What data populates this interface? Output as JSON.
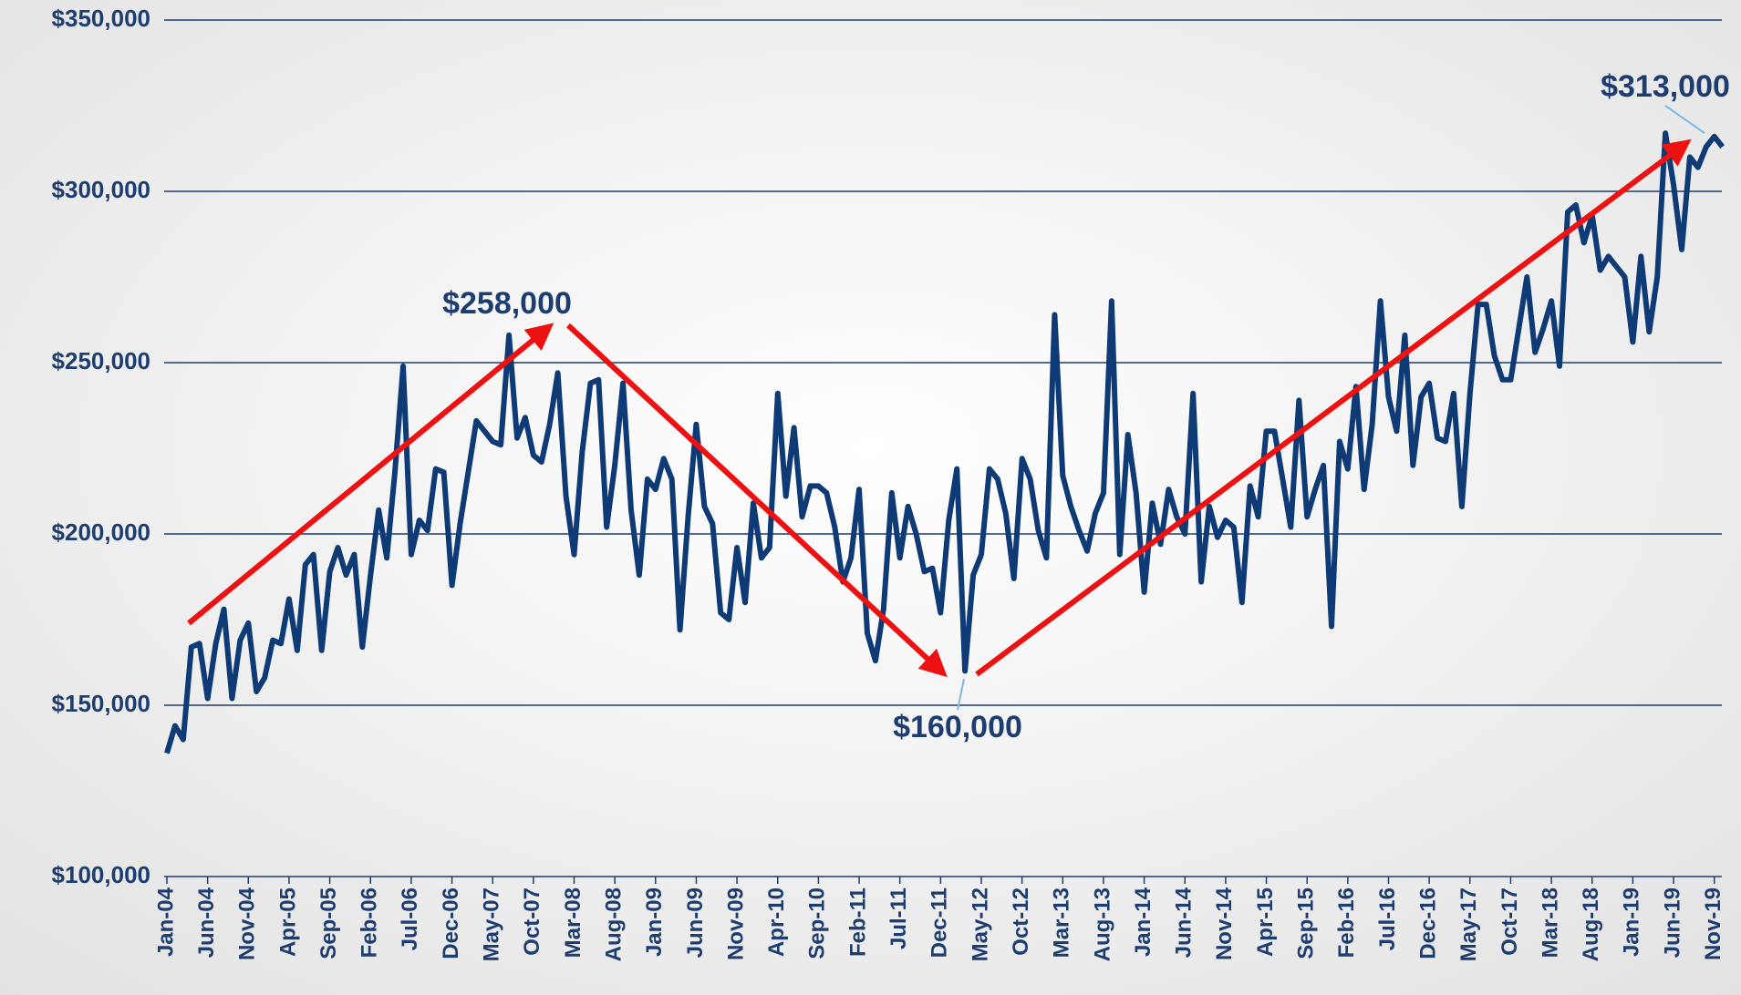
{
  "chart_data": {
    "type": "line",
    "categories": [
      "Jan-04",
      null,
      null,
      null,
      null,
      "Jun-04",
      null,
      null,
      null,
      null,
      "Nov-04",
      null,
      null,
      null,
      null,
      "Apr-05",
      null,
      null,
      null,
      null,
      "Sep-05",
      null,
      null,
      null,
      null,
      "Feb-06",
      null,
      null,
      null,
      null,
      "Jul-06",
      null,
      null,
      null,
      null,
      "Dec-06",
      null,
      null,
      null,
      null,
      "May-07",
      null,
      null,
      null,
      null,
      "Oct-07",
      null,
      null,
      null,
      null,
      "Mar-08",
      null,
      null,
      null,
      null,
      "Aug-08",
      null,
      null,
      null,
      null,
      "Jan-09",
      null,
      null,
      null,
      null,
      "Jun-09",
      null,
      null,
      null,
      null,
      "Nov-09",
      null,
      null,
      null,
      null,
      "Apr-10",
      null,
      null,
      null,
      null,
      "Sep-10",
      null,
      null,
      null,
      null,
      "Feb-11",
      null,
      null,
      null,
      null,
      "Jul-11",
      null,
      null,
      null,
      null,
      "Dec-11",
      null,
      null,
      null,
      null,
      "May-12",
      null,
      null,
      null,
      null,
      "Oct-12",
      null,
      null,
      null,
      null,
      "Mar-13",
      null,
      null,
      null,
      null,
      "Aug-13",
      null,
      null,
      null,
      null,
      "Jan-14",
      null,
      null,
      null,
      null,
      "Jun-14",
      null,
      null,
      null,
      null,
      "Nov-14",
      null,
      null,
      null,
      null,
      "Apr-15",
      null,
      null,
      null,
      null,
      "Sep-15",
      null,
      null,
      null,
      null,
      "Feb-16",
      null,
      null,
      null,
      null,
      "Jul-16",
      null,
      null,
      null,
      null,
      "Dec-16",
      null,
      null,
      null,
      null,
      "May-17",
      null,
      null,
      null,
      null,
      "Oct-17",
      null,
      null,
      null,
      null,
      "Mar-18",
      null,
      null,
      null,
      null,
      "Aug-18",
      null,
      null,
      null,
      null,
      "Jan-19",
      null,
      null,
      null,
      null,
      "Jun-19",
      null,
      null,
      null,
      null,
      "Nov-19",
      null
    ],
    "series": [
      {
        "color": "#0e3a76",
        "values": [
          136000,
          144000,
          140000,
          167000,
          168000,
          152000,
          168000,
          178000,
          152000,
          169000,
          174000,
          154000,
          158000,
          169000,
          168000,
          181000,
          166000,
          191000,
          194000,
          166000,
          189000,
          196000,
          188000,
          194000,
          167000,
          188000,
          207000,
          193000,
          218000,
          249000,
          194000,
          204000,
          201000,
          219000,
          218000,
          185000,
          203000,
          218000,
          233000,
          230000,
          227000,
          226000,
          258000,
          228000,
          234000,
          223000,
          221000,
          232000,
          247000,
          211000,
          194000,
          224000,
          244000,
          245000,
          202000,
          220000,
          244000,
          207000,
          188000,
          216000,
          213000,
          222000,
          216000,
          172000,
          205000,
          232000,
          208000,
          203000,
          177000,
          175000,
          196000,
          180000,
          209000,
          193000,
          196000,
          241000,
          211000,
          231000,
          205000,
          214000,
          214000,
          212000,
          202000,
          186000,
          193000,
          213000,
          171000,
          163000,
          178000,
          212000,
          193000,
          208000,
          200000,
          189000,
          190000,
          177000,
          204000,
          219000,
          160000,
          188000,
          194000,
          219000,
          216000,
          206000,
          187000,
          222000,
          216000,
          201000,
          193000,
          264000,
          217000,
          208000,
          201000,
          195000,
          206000,
          212000,
          268000,
          194000,
          229000,
          212000,
          183000,
          209000,
          197000,
          213000,
          205000,
          200000,
          241000,
          186000,
          208000,
          199000,
          204000,
          202000,
          180000,
          214000,
          205000,
          230000,
          230000,
          216000,
          202000,
          239000,
          205000,
          213000,
          220000,
          173000,
          227000,
          219000,
          243000,
          213000,
          232000,
          268000,
          240000,
          230000,
          258000,
          220000,
          240000,
          244000,
          228000,
          227000,
          241000,
          208000,
          241000,
          267000,
          267000,
          252000,
          245000,
          245000,
          260000,
          275000,
          253000,
          260000,
          268000,
          249000,
          294000,
          296000,
          285000,
          293000,
          277000,
          281000,
          278000,
          275000,
          256000,
          281000,
          259000,
          275000,
          317000,
          302000,
          283000,
          310000,
          307000,
          313000,
          316000,
          313000
        ]
      }
    ],
    "ylim": [
      100000,
      350000
    ],
    "yticks": [
      {
        "value": 100000,
        "label": "$100,000"
      },
      {
        "value": 150000,
        "label": "$150,000"
      },
      {
        "value": 200000,
        "label": "$200,000"
      },
      {
        "value": 250000,
        "label": "$250,000"
      },
      {
        "value": 300000,
        "label": "$300,000"
      },
      {
        "value": 350000,
        "label": "$350,000"
      }
    ],
    "grid": true,
    "annotations": [
      {
        "text": "$258,000"
      },
      {
        "text": "$160,000"
      },
      {
        "text": "$313,000"
      }
    ]
  }
}
